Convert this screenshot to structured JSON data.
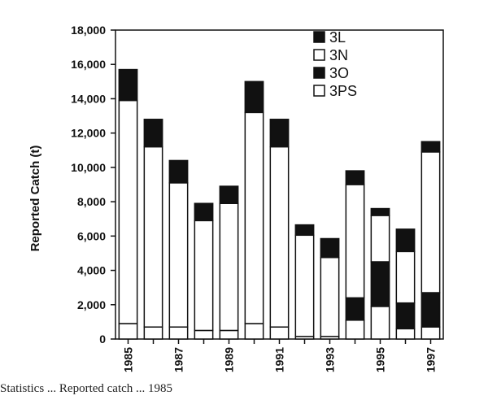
{
  "chart_data": {
    "type": "bar",
    "stacked": true,
    "title": "",
    "xlabel": "",
    "ylabel": "Reported Catch (t)",
    "ylim": [
      0,
      18000
    ],
    "y_ticks": [
      "0",
      "2,000",
      "4,000",
      "6,000",
      "8,000",
      "10,000",
      "12,000",
      "14,000",
      "16,000",
      "18,000"
    ],
    "y_tick_values": [
      0,
      2000,
      4000,
      6000,
      8000,
      10000,
      12000,
      14000,
      16000,
      18000
    ],
    "categories": [
      "1985",
      "1986",
      "1987",
      "1988",
      "1989",
      "1990",
      "1991",
      "1992",
      "1993",
      "1994",
      "1995",
      "1996",
      "1997"
    ],
    "x_tick_labels": [
      "1985",
      "",
      "1987",
      "",
      "1989",
      "",
      "1991",
      "",
      "1993",
      "",
      "1995",
      "",
      "1997"
    ],
    "legend_position": "top-right",
    "grid": false,
    "series": [
      {
        "name": "3PS",
        "fill": "#ffffff",
        "values": [
          900,
          700,
          700,
          500,
          500,
          900,
          700,
          150,
          150,
          1100,
          1900,
          600,
          700
        ]
      },
      {
        "name": "3O",
        "fill": "#111111",
        "values": [
          0,
          0,
          0,
          0,
          0,
          0,
          0,
          0,
          0,
          1300,
          2600,
          1500,
          2000
        ]
      },
      {
        "name": "3N",
        "fill": "#ffffff",
        "values": [
          13000,
          10500,
          8400,
          6400,
          7400,
          12300,
          10500,
          5900,
          4600,
          6600,
          2700,
          3000,
          8200
        ]
      },
      {
        "name": "3L",
        "fill": "#111111",
        "values": [
          1800,
          1600,
          1300,
          1000,
          1000,
          1800,
          1600,
          600,
          1100,
          800,
          400,
          1300,
          600
        ]
      }
    ],
    "legend": [
      {
        "name": "3L",
        "fill": "#111111"
      },
      {
        "name": "3N",
        "fill": "#ffffff"
      },
      {
        "name": "3O",
        "fill": "#111111"
      },
      {
        "name": "3PS",
        "fill": "#ffffff"
      }
    ]
  },
  "caption": "Statistics ... Reported catch ... 1985"
}
